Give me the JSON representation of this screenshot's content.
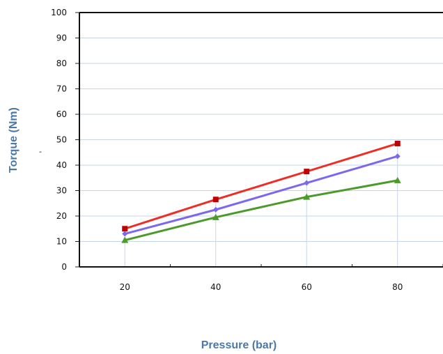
{
  "chart_data": {
    "type": "line",
    "xlabel": "Pressure (bar)",
    "ylabel": "Torque (Nm)",
    "x": [
      20,
      40,
      60,
      80
    ],
    "xlim": [
      10,
      90
    ],
    "ylim": [
      0,
      100
    ],
    "yticks": [
      0,
      10,
      20,
      30,
      40,
      50,
      60,
      70,
      80,
      90,
      100
    ],
    "xticks": [
      20,
      40,
      60,
      80
    ],
    "grid": "horizontal and vertical at x values",
    "series": [
      {
        "color": "#ee2e24",
        "marker": "square",
        "marker_color": "#c00000",
        "values": [
          15,
          26.5,
          37.5,
          48.5
        ]
      },
      {
        "color": "#7b68ee",
        "marker": "diamond",
        "marker_color": "#7b68ee",
        "values": [
          13,
          22.5,
          33,
          43.5
        ]
      },
      {
        "color": "#4c9a2a",
        "marker": "triangle",
        "marker_color": "#4c9a2a",
        "values": [
          10.5,
          19.5,
          27.5,
          34
        ]
      }
    ]
  },
  "stray_mark": "-"
}
